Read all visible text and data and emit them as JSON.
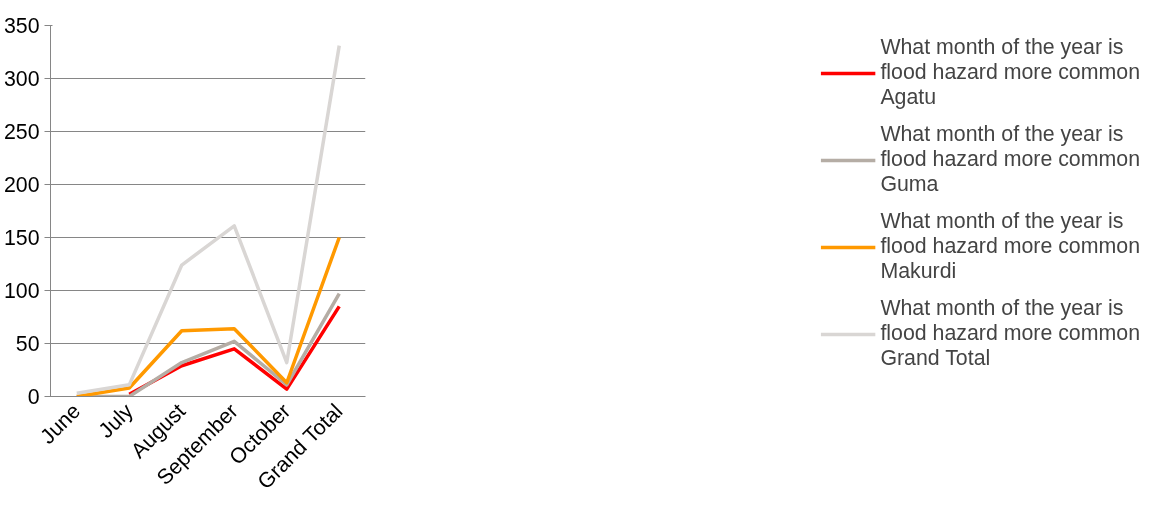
{
  "chart_data": {
    "type": "line",
    "categories": [
      "June",
      "July",
      "August",
      "September",
      "October",
      "Grand Total"
    ],
    "series": [
      {
        "name": "What month of the year is flood hazard more common Agatu",
        "color": "#ff0000",
        "values": [
          null,
          2,
          29,
          45,
          7,
          85
        ]
      },
      {
        "name": "What month of the year is flood hazard more common Guma",
        "color": "#b5ada5",
        "values": [
          0,
          0,
          32,
          52,
          11,
          97
        ]
      },
      {
        "name": "What month of the year is flood hazard more common Makurdi",
        "color": "#ff9900",
        "values": [
          0,
          8,
          62,
          64,
          13,
          150
        ]
      },
      {
        "name": "What month of the year is flood hazard more common Grand Total",
        "color": "#d9d6d4",
        "values": [
          3,
          11,
          124,
          161,
          32,
          331
        ]
      }
    ],
    "ylim": [
      0,
      350
    ],
    "yticks": [
      0,
      50,
      100,
      150,
      200,
      250,
      300,
      350
    ],
    "grid": "y",
    "legend": "right",
    "marker": "none",
    "line_style": "solid"
  }
}
